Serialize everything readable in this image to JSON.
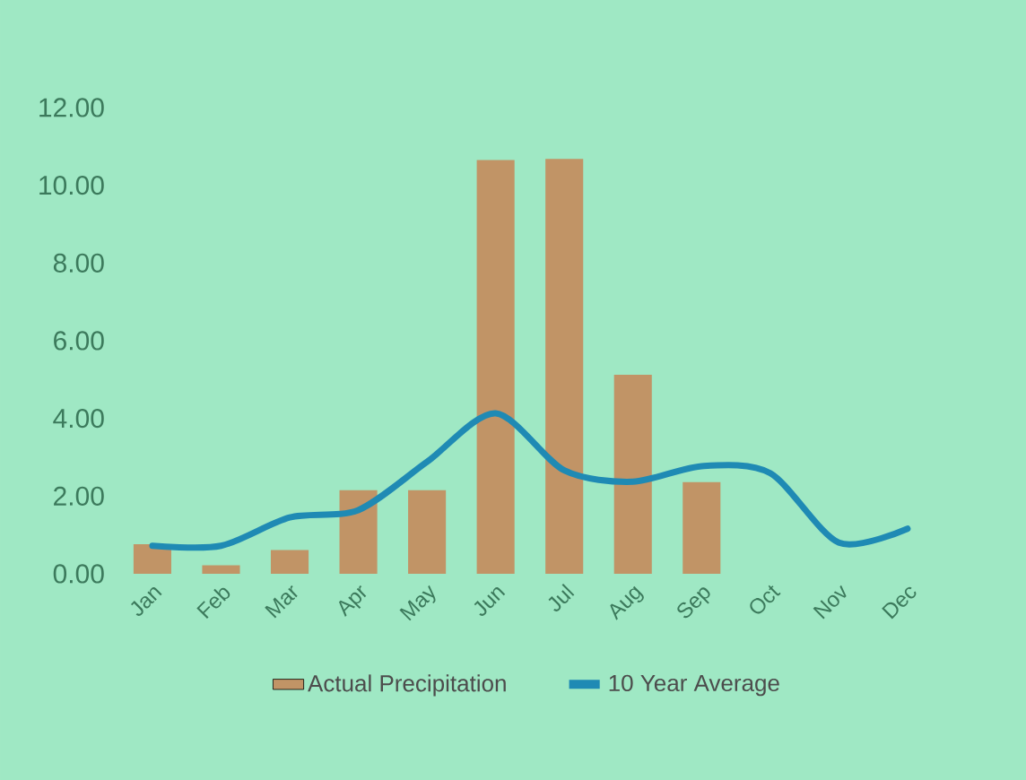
{
  "chart_data": {
    "type": "bar",
    "categories": [
      "Jan",
      "Feb",
      "Mar",
      "Apr",
      "May",
      "Jun",
      "Jul",
      "Aug",
      "Sep",
      "Oct",
      "Nov",
      "Dec"
    ],
    "series": [
      {
        "name": "Actual Precipitation",
        "color": "#c19466",
        "values": [
          0.76,
          0.22,
          0.61,
          2.15,
          2.15,
          10.65,
          10.68,
          5.12,
          2.36,
          null,
          null,
          null
        ]
      },
      {
        "name": "10 Year Average",
        "type": "line",
        "color": "#1f8ab4",
        "values": [
          0.72,
          0.72,
          1.45,
          1.64,
          2.88,
          4.13,
          2.66,
          2.37,
          2.77,
          2.59,
          0.8,
          1.16
        ]
      }
    ],
    "ylim": [
      0,
      12
    ],
    "yticks": [
      {
        "value": 0,
        "label": "0.00"
      },
      {
        "value": 2,
        "label": "2.00"
      },
      {
        "value": 4,
        "label": "4.00"
      },
      {
        "value": 6,
        "label": "6.00"
      },
      {
        "value": 8,
        "label": "8.00"
      },
      {
        "value": 10,
        "label": "10.00"
      },
      {
        "value": 12,
        "label": "12.00"
      }
    ],
    "legend": "bottom",
    "grid": false
  }
}
